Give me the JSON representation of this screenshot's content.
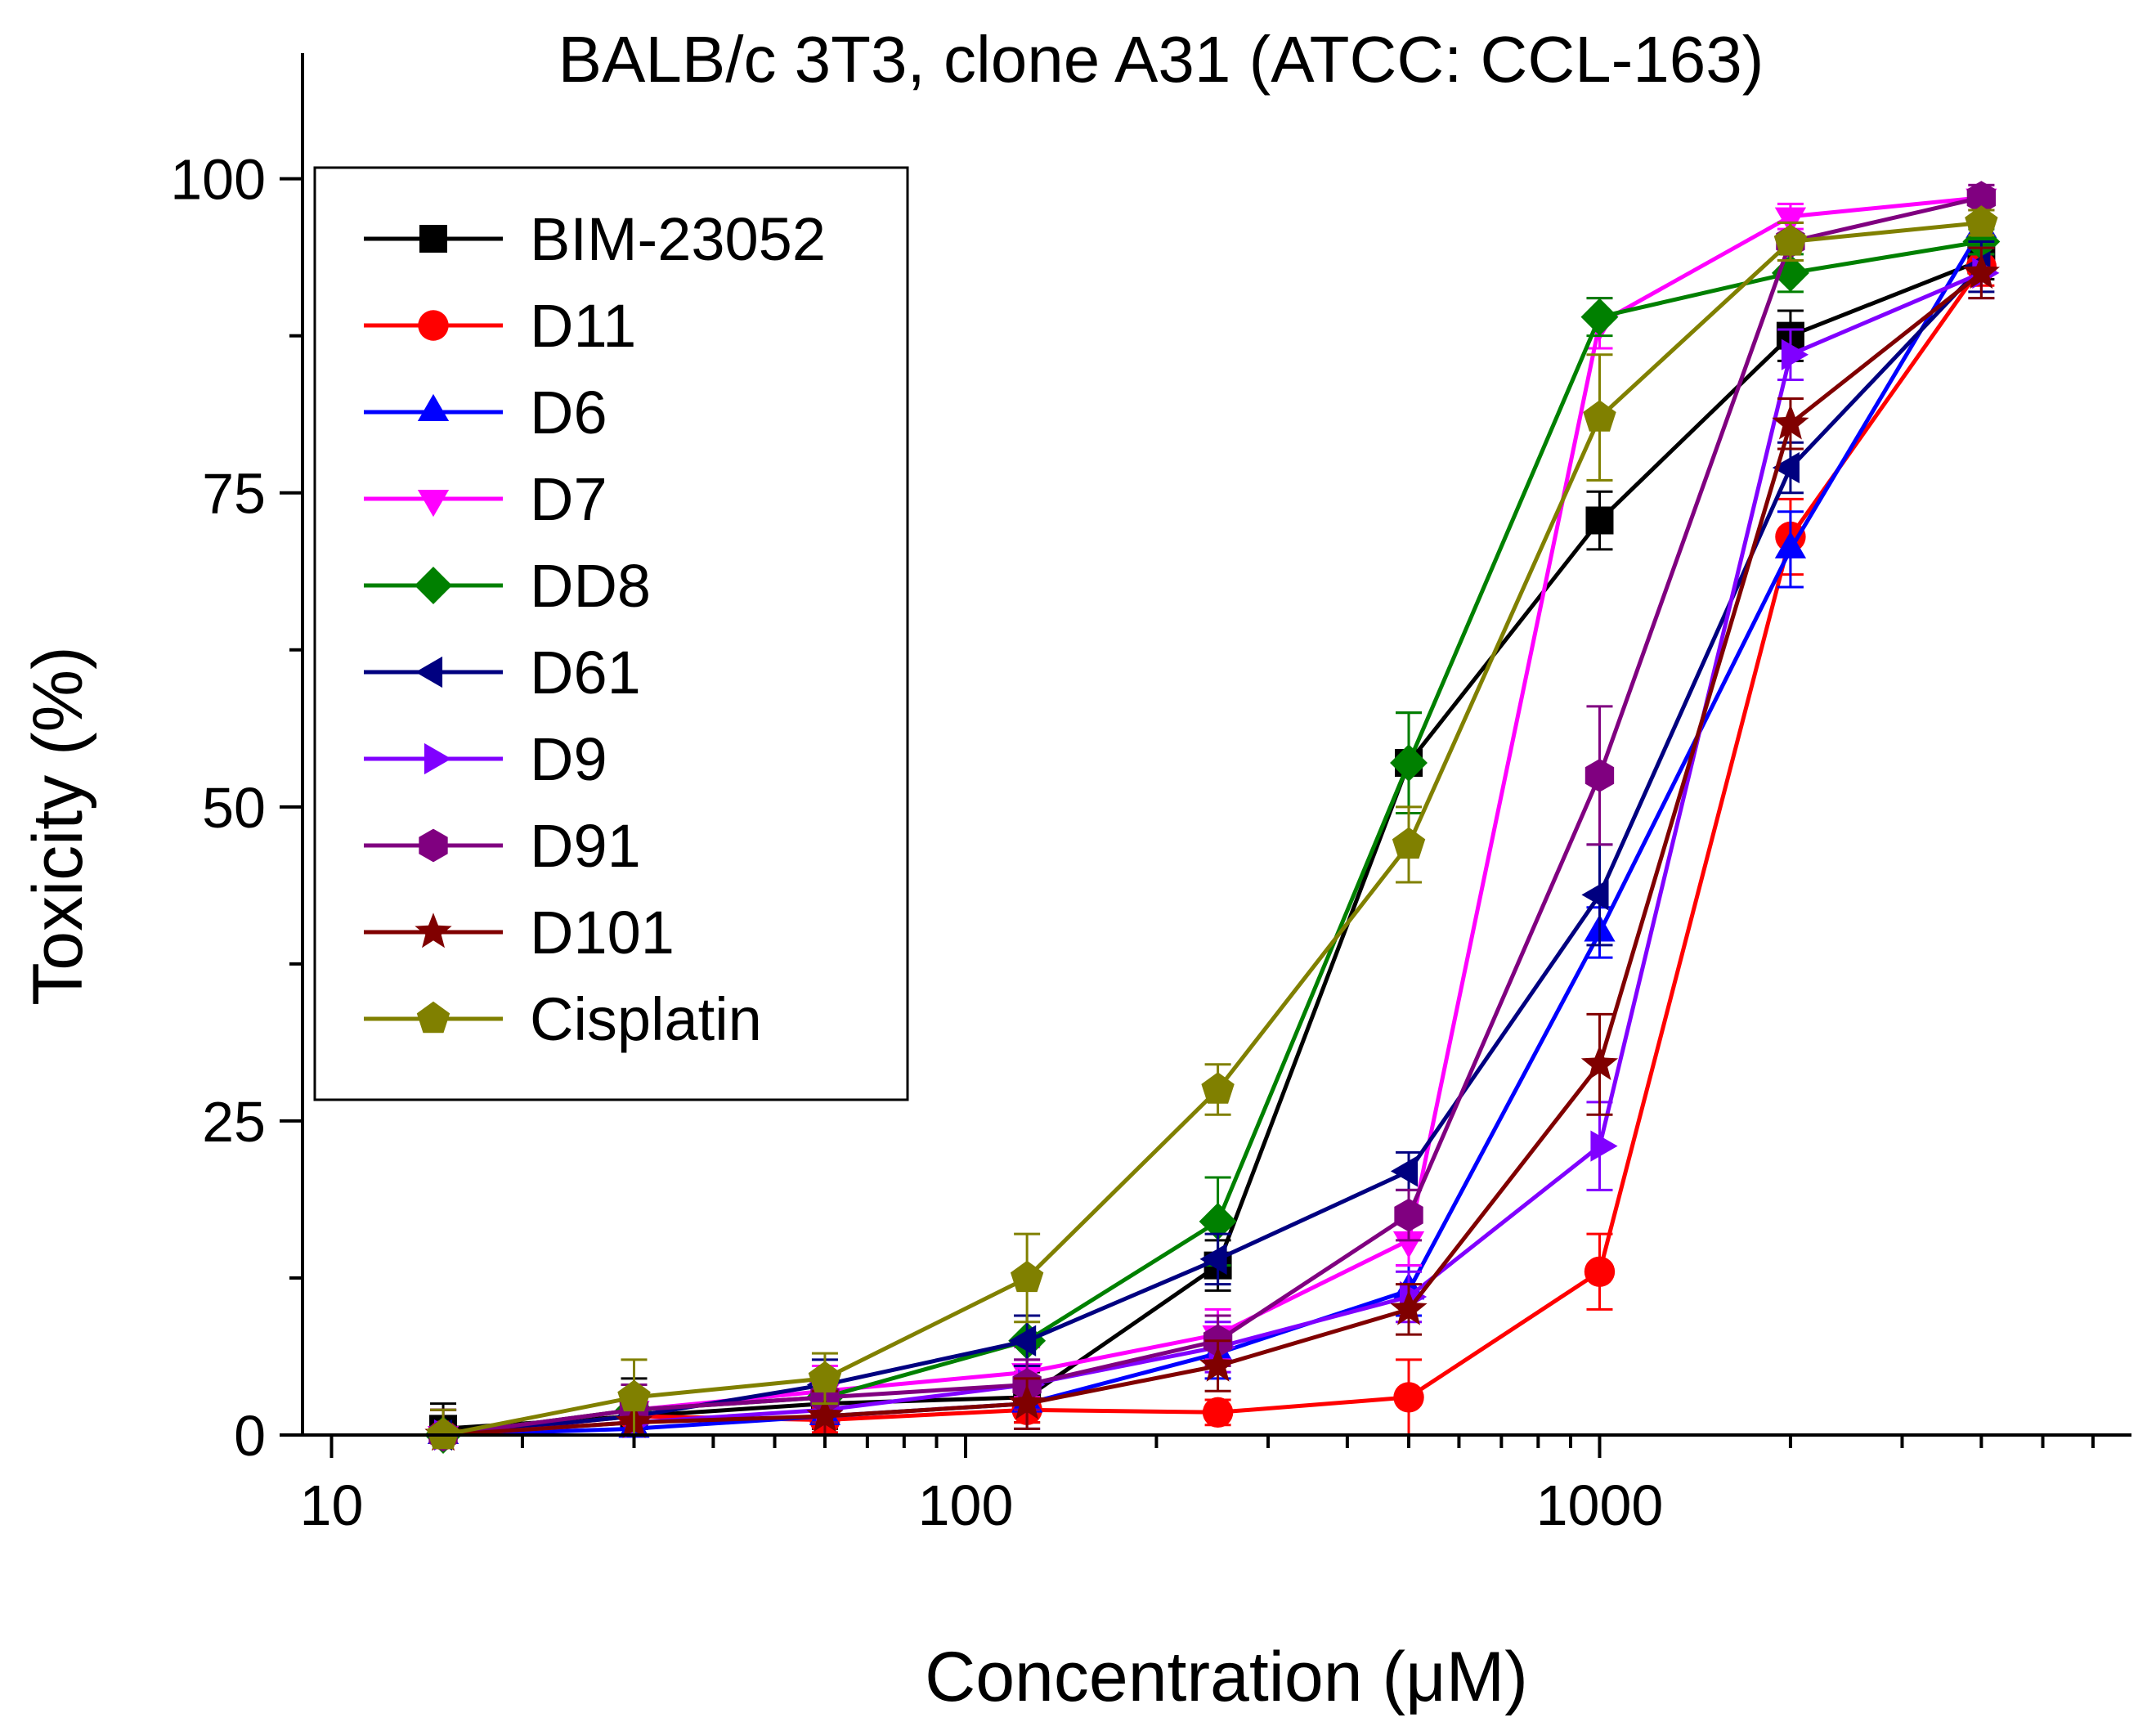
{
  "chart_data": {
    "type": "line",
    "title": "BALB/c 3T3, clone A31 (ATCC: CCL-163)",
    "xlabel": "Concentration (μM)",
    "ylabel": "Toxicity (%)",
    "x_scale": "log",
    "xlim": [
      9,
      6900
    ],
    "ylim": [
      0,
      110
    ],
    "x_ticks": [
      10,
      100,
      1000
    ],
    "x_tick_labels": [
      "10",
      "100",
      "1000"
    ],
    "y_ticks": [
      0,
      25,
      50,
      75,
      100
    ],
    "y_tick_labels": [
      "0",
      "25",
      "50",
      "75",
      "100"
    ],
    "legend_position": "upper-left",
    "grid": false,
    "x": [
      15,
      30,
      60,
      125,
      250,
      500,
      1000,
      2000,
      4000
    ],
    "series": [
      {
        "name": "BIM-23052",
        "color": "#000000",
        "marker": "square",
        "values": [
          0.5,
          1.5,
          2.5,
          3,
          13.5,
          53.5,
          72.8,
          87.5,
          93.5
        ],
        "errors": [
          2,
          3,
          2,
          2,
          2,
          4,
          2.3,
          2,
          1.5
        ]
      },
      {
        "name": "D11",
        "color": "#ff0000",
        "marker": "circle",
        "values": [
          0,
          1.5,
          1.2,
          2,
          1.8,
          3,
          13,
          71.5,
          93
        ],
        "errors": [
          2,
          2,
          1,
          1,
          1,
          3,
          3,
          3,
          1.5
        ]
      },
      {
        "name": "D6",
        "color": "#0000ff",
        "marker": "triangle-up",
        "values": [
          0,
          0.5,
          1.5,
          2.5,
          6.5,
          11.5,
          40,
          70.5,
          96
        ],
        "errors": [
          2,
          2,
          2,
          2,
          2,
          2,
          2,
          3,
          2
        ]
      },
      {
        "name": "D7",
        "color": "#ff00ff",
        "marker": "triangle-down",
        "values": [
          0,
          2,
          3.5,
          5,
          8,
          15.5,
          88.5,
          97,
          98.5
        ],
        "errors": [
          2,
          2,
          2,
          2,
          2,
          2,
          2,
          1,
          1
        ]
      },
      {
        "name": "DD8",
        "color": "#008000",
        "marker": "diamond",
        "values": [
          0,
          2,
          3,
          7.5,
          17,
          53.5,
          89,
          92.5,
          95
        ],
        "errors": [
          2,
          2,
          2,
          2,
          3.5,
          4,
          1.5,
          1.5,
          1
        ]
      },
      {
        "name": "D61",
        "color": "#000080",
        "marker": "triangle-left",
        "values": [
          0,
          1.5,
          4,
          7.5,
          14,
          21,
          43,
          77,
          93
        ],
        "errors": [
          2,
          2,
          2,
          2,
          2,
          1.5,
          4,
          2,
          2
        ]
      },
      {
        "name": "D9",
        "color": "#8000ff",
        "marker": "triangle-right",
        "values": [
          0,
          1,
          2,
          4,
          7,
          11,
          23,
          86,
          92.5
        ],
        "errors": [
          2,
          2,
          2,
          2,
          2,
          2,
          3.5,
          2,
          2
        ]
      },
      {
        "name": "D91",
        "color": "#800080",
        "marker": "hexagon",
        "values": [
          0,
          2,
          3,
          4,
          7.5,
          17.5,
          52.5,
          95,
          98.5
        ],
        "errors": [
          2,
          2,
          2,
          2,
          2,
          2,
          5.5,
          1.5,
          1
        ]
      },
      {
        "name": "D101",
        "color": "#800000",
        "marker": "star",
        "values": [
          0,
          1,
          1.5,
          2.5,
          5.5,
          10,
          29.5,
          80.5,
          92.5
        ],
        "errors": [
          2,
          2,
          2,
          2,
          2,
          2,
          4,
          2,
          2
        ]
      },
      {
        "name": "Cisplatin",
        "color": "#808000",
        "marker": "pentagon",
        "values": [
          0,
          3,
          4.5,
          12.5,
          27.5,
          47,
          81,
          95,
          96.5
        ],
        "errors": [
          2,
          3,
          2,
          3.5,
          2,
          3,
          5,
          1.5,
          1
        ]
      }
    ]
  }
}
